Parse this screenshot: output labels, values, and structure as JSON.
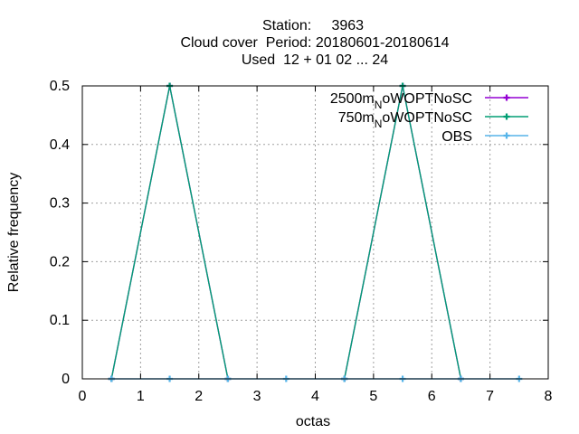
{
  "chart_data": {
    "type": "line",
    "title_lines": [
      "Station:     3963",
      "Cloud cover  Period: 20180601-20180614",
      "Used  12 + 01 02 ... 24"
    ],
    "xlabel": "octas",
    "ylabel": "Relative frequency",
    "xlim": [
      0,
      8
    ],
    "ylim": [
      0,
      0.5
    ],
    "xticks": [
      0,
      1,
      2,
      3,
      4,
      5,
      6,
      7,
      8
    ],
    "yticks": [
      0,
      0.1,
      0.2,
      0.3,
      0.4,
      0.5
    ],
    "xtick_labels": [
      "0",
      "1",
      "2",
      "3",
      "4",
      "5",
      "6",
      "7",
      "8"
    ],
    "ytick_labels": [
      "0",
      "0.1",
      "0.2",
      "0.3",
      "0.4",
      "0.5"
    ],
    "grid": true,
    "legend_position": "top-right",
    "x": [
      0.5,
      1.5,
      2.5,
      3.5,
      4.5,
      5.5,
      6.5,
      7.5
    ],
    "series": [
      {
        "name_main": "2500m",
        "name_sub": "N",
        "name_tail": "oWOPTNoSC",
        "color": "#9400d3",
        "values": [
          0,
          0.5,
          0,
          null,
          0,
          0.5,
          0,
          null
        ]
      },
      {
        "name_main": "750m",
        "name_sub": "N",
        "name_tail": "oWOPTNoSC",
        "color": "#009e73",
        "values": [
          0,
          0.5,
          0,
          null,
          0,
          0.5,
          0,
          null
        ]
      },
      {
        "name_main": "OBS",
        "name_sub": "",
        "name_tail": "",
        "color": "#56b4e9",
        "values": [
          0,
          0,
          0,
          0,
          0,
          0,
          0,
          0
        ]
      }
    ]
  }
}
